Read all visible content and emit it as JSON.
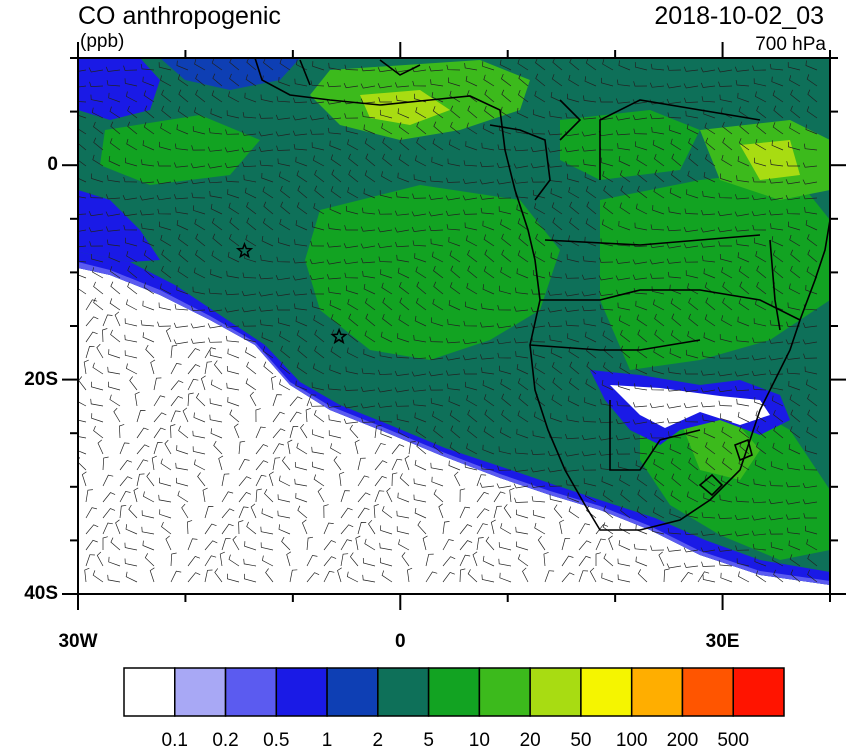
{
  "header": {
    "title": "CO anthropogenic",
    "units": "(ppb)",
    "datetime": "2018-10-02_03",
    "level": "700 hPa"
  },
  "axes": {
    "x_ticks": [
      {
        "value": -30,
        "label": "30W"
      },
      {
        "value": 0,
        "label": "0"
      },
      {
        "value": 30,
        "label": "30E"
      }
    ],
    "y_ticks": [
      {
        "value": 0,
        "label": "0"
      },
      {
        "value": -20,
        "label": "20S"
      },
      {
        "value": -40,
        "label": "40S"
      }
    ],
    "lon_range": [
      -30,
      40
    ],
    "lat_range": [
      -40,
      10
    ]
  },
  "colorbar": {
    "colors": [
      "#ffffff",
      "#a8a8f5",
      "#5b5bf0",
      "#1a1ae6",
      "#0e3fb4",
      "#0e7059",
      "#12a322",
      "#3cba1c",
      "#a8dc12",
      "#f5f500",
      "#ffae00",
      "#ff5500",
      "#ff1400"
    ],
    "labels": [
      "0.1",
      "0.2",
      "0.5",
      "1",
      "2",
      "5",
      "10",
      "20",
      "50",
      "100",
      "200",
      "500"
    ]
  },
  "markers": [
    {
      "name": "star-marker",
      "lon": -14.5,
      "lat": -8
    },
    {
      "name": "star-marker",
      "lon": -5.7,
      "lat": -16
    }
  ]
}
